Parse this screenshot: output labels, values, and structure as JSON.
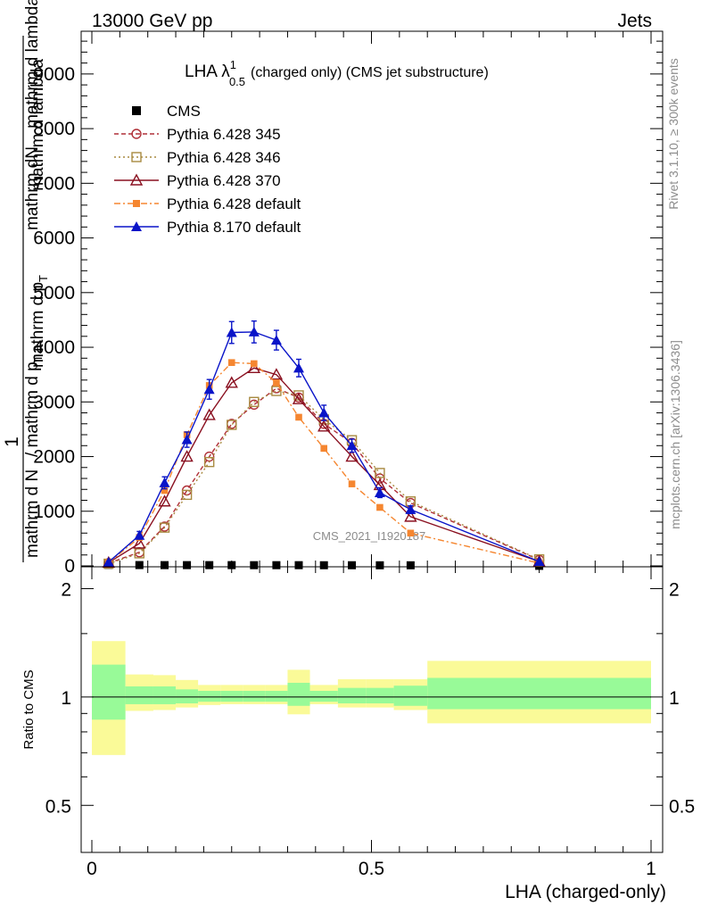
{
  "header": {
    "left": "13000 GeV pp",
    "right": "Jets"
  },
  "side_labels": {
    "top": "Rivet 3.1.10, ≥ 300k events",
    "bottom": "mcplots.cern.ch [arXiv:1306.3436]"
  },
  "watermark": "CMS_2021_I1920187",
  "chart_data": [
    {
      "type": "line",
      "title_main": "LHA λ",
      "title_sup": "1",
      "title_sub": "0.5",
      "title_rest": "(charged only) (CMS jet substructure)",
      "ylabel_numerator": "mathrm dN",
      "ylabel_fraction": "1",
      "ylabel_fraction_den": "mathrm d N",
      "ylabel_rest": "/ mathrm d p",
      "ylabel_rest_sub": "T",
      "ylabel_rest2": "mathrm d p",
      "ylabel_rest2_sub": "T",
      "ylabel_rest3": "mathrm d lambda",
      "ylabel_top_partial": "mathrm d lambda",
      "xlim": [
        0,
        1
      ],
      "ylim": [
        0,
        9700
      ],
      "yticks": [
        {
          "v": 0,
          "label": "0"
        },
        {
          "v": 1000,
          "label": "1000"
        },
        {
          "v": 2000,
          "label": "2000"
        },
        {
          "v": 3000,
          "label": "3000"
        },
        {
          "v": 4000,
          "label": "4000"
        },
        {
          "v": 5000,
          "label": "5000"
        },
        {
          "v": 6000,
          "label": "6000"
        },
        {
          "v": 7000,
          "label": "7000"
        },
        {
          "v": 8000,
          "label": "8000"
        },
        {
          "v": 9000,
          "label": "9000"
        }
      ],
      "legend_position": "top-left",
      "series": [
        {
          "name": "CMS",
          "color": "#000000",
          "marker": "square-filled",
          "dash": "",
          "points": [
            [
              0.03,
              18
            ],
            [
              0.085,
              15
            ],
            [
              0.13,
              14
            ],
            [
              0.17,
              14
            ],
            [
              0.21,
              14
            ],
            [
              0.25,
              14
            ],
            [
              0.29,
              13
            ],
            [
              0.33,
              13
            ],
            [
              0.37,
              13
            ],
            [
              0.415,
              12
            ],
            [
              0.465,
              12
            ],
            [
              0.515,
              11
            ],
            [
              0.57,
              11
            ],
            [
              0.8,
              1
            ]
          ]
        },
        {
          "name": "Pythia 6.428 345",
          "color": "#b03038",
          "marker": "circle-open",
          "dash": "5,3",
          "points": [
            [
              0.03,
              50
            ],
            [
              0.085,
              250
            ],
            [
              0.13,
              720
            ],
            [
              0.17,
              1380
            ],
            [
              0.21,
              2000
            ],
            [
              0.25,
              2600
            ],
            [
              0.29,
              2950
            ],
            [
              0.33,
              3250
            ],
            [
              0.37,
              3080
            ],
            [
              0.415,
              2600
            ],
            [
              0.465,
              2250
            ],
            [
              0.515,
              1600
            ],
            [
              0.57,
              1150
            ],
            [
              0.8,
              110
            ]
          ]
        },
        {
          "name": "Pythia 6.428 346",
          "color": "#a88a40",
          "marker": "square-open",
          "dash": "2,3",
          "points": [
            [
              0.03,
              40
            ],
            [
              0.085,
              230
            ],
            [
              0.13,
              700
            ],
            [
              0.17,
              1300
            ],
            [
              0.21,
              1900
            ],
            [
              0.25,
              2580
            ],
            [
              0.29,
              3000
            ],
            [
              0.33,
              3200
            ],
            [
              0.37,
              3120
            ],
            [
              0.415,
              2680
            ],
            [
              0.465,
              2300
            ],
            [
              0.515,
              1700
            ],
            [
              0.57,
              1180
            ],
            [
              0.8,
              120
            ]
          ]
        },
        {
          "name": "Pythia 6.428 370",
          "color": "#8a1020",
          "marker": "triangle-open",
          "dash": "",
          "points": [
            [
              0.03,
              60
            ],
            [
              0.085,
              410
            ],
            [
              0.13,
              1180
            ],
            [
              0.17,
              2000
            ],
            [
              0.21,
              2760
            ],
            [
              0.25,
              3350
            ],
            [
              0.29,
              3620
            ],
            [
              0.33,
              3500
            ],
            [
              0.37,
              3050
            ],
            [
              0.415,
              2550
            ],
            [
              0.465,
              2000
            ],
            [
              0.515,
              1480
            ],
            [
              0.57,
              900
            ],
            [
              0.8,
              80
            ]
          ]
        },
        {
          "name": "Pythia 6.428 default",
          "color": "#f58630",
          "marker": "square-filled",
          "dash": "7,3,2,3",
          "points": [
            [
              0.03,
              60
            ],
            [
              0.085,
              520
            ],
            [
              0.13,
              1380
            ],
            [
              0.17,
              2400
            ],
            [
              0.21,
              3300
            ],
            [
              0.25,
              3720
            ],
            [
              0.29,
              3700
            ],
            [
              0.33,
              3350
            ],
            [
              0.37,
              2720
            ],
            [
              0.415,
              2150
            ],
            [
              0.465,
              1500
            ],
            [
              0.515,
              1070
            ],
            [
              0.57,
              600
            ],
            [
              0.8,
              50
            ]
          ]
        },
        {
          "name": "Pythia 8.170 default",
          "color": "#0a14c8",
          "marker": "triangle-filled",
          "dash": "",
          "points": [
            [
              0.03,
              70
            ],
            [
              0.085,
              560
            ],
            [
              0.13,
              1520
            ],
            [
              0.17,
              2310
            ],
            [
              0.21,
              3230
            ],
            [
              0.25,
              4270
            ],
            [
              0.29,
              4280
            ],
            [
              0.33,
              4130
            ],
            [
              0.37,
              3620
            ],
            [
              0.415,
              2800
            ],
            [
              0.465,
              2200
            ],
            [
              0.515,
              1340
            ],
            [
              0.57,
              1030
            ],
            [
              0.8,
              80
            ]
          ],
          "errors": [
            20,
            70,
            110,
            140,
            180,
            200,
            200,
            180,
            160,
            140,
            120,
            90,
            70,
            15
          ]
        }
      ]
    },
    {
      "type": "area",
      "ylabel": "Ratio to CMS",
      "xlabel": "LHA (charged-only)",
      "xlim": [
        0,
        1
      ],
      "ylim": [
        0.37,
        2.3
      ],
      "yticks": [
        {
          "v": 0.5,
          "label": "0.5"
        },
        {
          "v": 1,
          "label": "1"
        },
        {
          "v": 2,
          "label": "2"
        }
      ],
      "xticks": [
        {
          "v": 0,
          "label": "0"
        },
        {
          "v": 0.5,
          "label": "0.5"
        },
        {
          "v": 1,
          "label": "1"
        }
      ],
      "uncertainty_bins": [
        {
          "x0": 0.0,
          "x1": 0.06,
          "inner": [
            0.865,
            1.23
          ],
          "outer": [
            0.69,
            1.43
          ]
        },
        {
          "x0": 0.06,
          "x1": 0.11,
          "inner": [
            0.955,
            1.07
          ],
          "outer": [
            0.915,
            1.155
          ]
        },
        {
          "x0": 0.11,
          "x1": 0.15,
          "inner": [
            0.955,
            1.07
          ],
          "outer": [
            0.92,
            1.15
          ]
        },
        {
          "x0": 0.15,
          "x1": 0.19,
          "inner": [
            0.96,
            1.05
          ],
          "outer": [
            0.935,
            1.115
          ]
        },
        {
          "x0": 0.19,
          "x1": 0.23,
          "inner": [
            0.97,
            1.04
          ],
          "outer": [
            0.95,
            1.08
          ]
        },
        {
          "x0": 0.23,
          "x1": 0.27,
          "inner": [
            0.97,
            1.04
          ],
          "outer": [
            0.955,
            1.08
          ]
        },
        {
          "x0": 0.27,
          "x1": 0.31,
          "inner": [
            0.97,
            1.04
          ],
          "outer": [
            0.955,
            1.08
          ]
        },
        {
          "x0": 0.31,
          "x1": 0.35,
          "inner": [
            0.97,
            1.04
          ],
          "outer": [
            0.955,
            1.08
          ]
        },
        {
          "x0": 0.35,
          "x1": 0.39,
          "inner": [
            0.945,
            1.095
          ],
          "outer": [
            0.895,
            1.19
          ]
        },
        {
          "x0": 0.39,
          "x1": 0.44,
          "inner": [
            0.97,
            1.04
          ],
          "outer": [
            0.955,
            1.08
          ]
        },
        {
          "x0": 0.44,
          "x1": 0.49,
          "inner": [
            0.96,
            1.06
          ],
          "outer": [
            0.935,
            1.12
          ]
        },
        {
          "x0": 0.49,
          "x1": 0.54,
          "inner": [
            0.96,
            1.06
          ],
          "outer": [
            0.935,
            1.12
          ]
        },
        {
          "x0": 0.54,
          "x1": 0.6,
          "inner": [
            0.945,
            1.075
          ],
          "outer": [
            0.92,
            1.12
          ]
        },
        {
          "x0": 0.6,
          "x1": 1.0,
          "inner": [
            0.925,
            1.13
          ],
          "outer": [
            0.845,
            1.26
          ]
        }
      ],
      "reference": 1,
      "colors": {
        "inner": "#98fa98",
        "outer": "#fafa98"
      }
    }
  ]
}
